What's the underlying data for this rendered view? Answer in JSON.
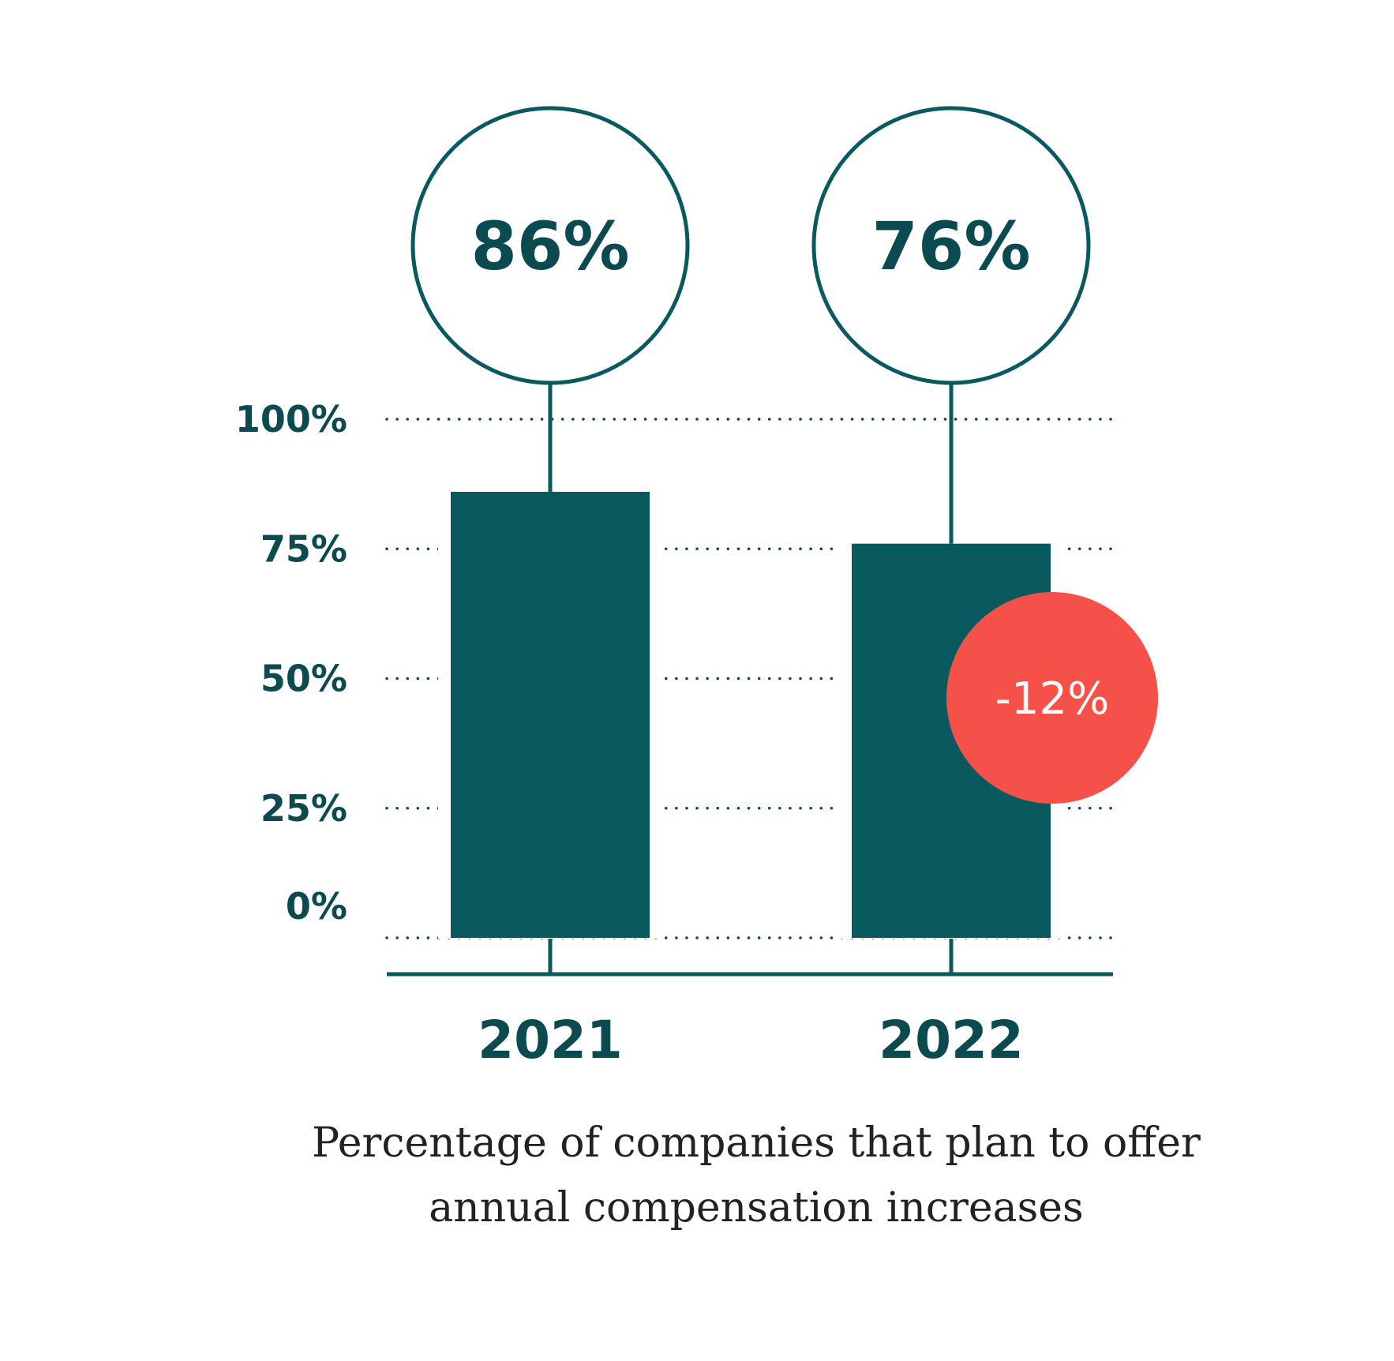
{
  "chart_data": {
    "type": "bar",
    "categories": [
      "2021",
      "2022"
    ],
    "values": [
      86,
      76
    ],
    "value_labels": [
      "86%",
      "76%"
    ],
    "ylim": [
      0,
      100
    ],
    "yticks": [
      0,
      25,
      50,
      75,
      100
    ],
    "ytick_labels": [
      "0%",
      "25%",
      "50%",
      "75%",
      "100%"
    ],
    "grid": "dotted horizontal",
    "change_annotation": {
      "text": "-12%",
      "series_index": 1
    },
    "caption": [
      "Percentage of companies that plan to offer",
      "annual compensation increases"
    ]
  },
  "colors": {
    "bar": "#085a5e",
    "text": "#0b4a4e",
    "badge": "#f55148",
    "badge_text": "#ffffff",
    "caption": "#222222",
    "grid": "#0b4a4e"
  }
}
